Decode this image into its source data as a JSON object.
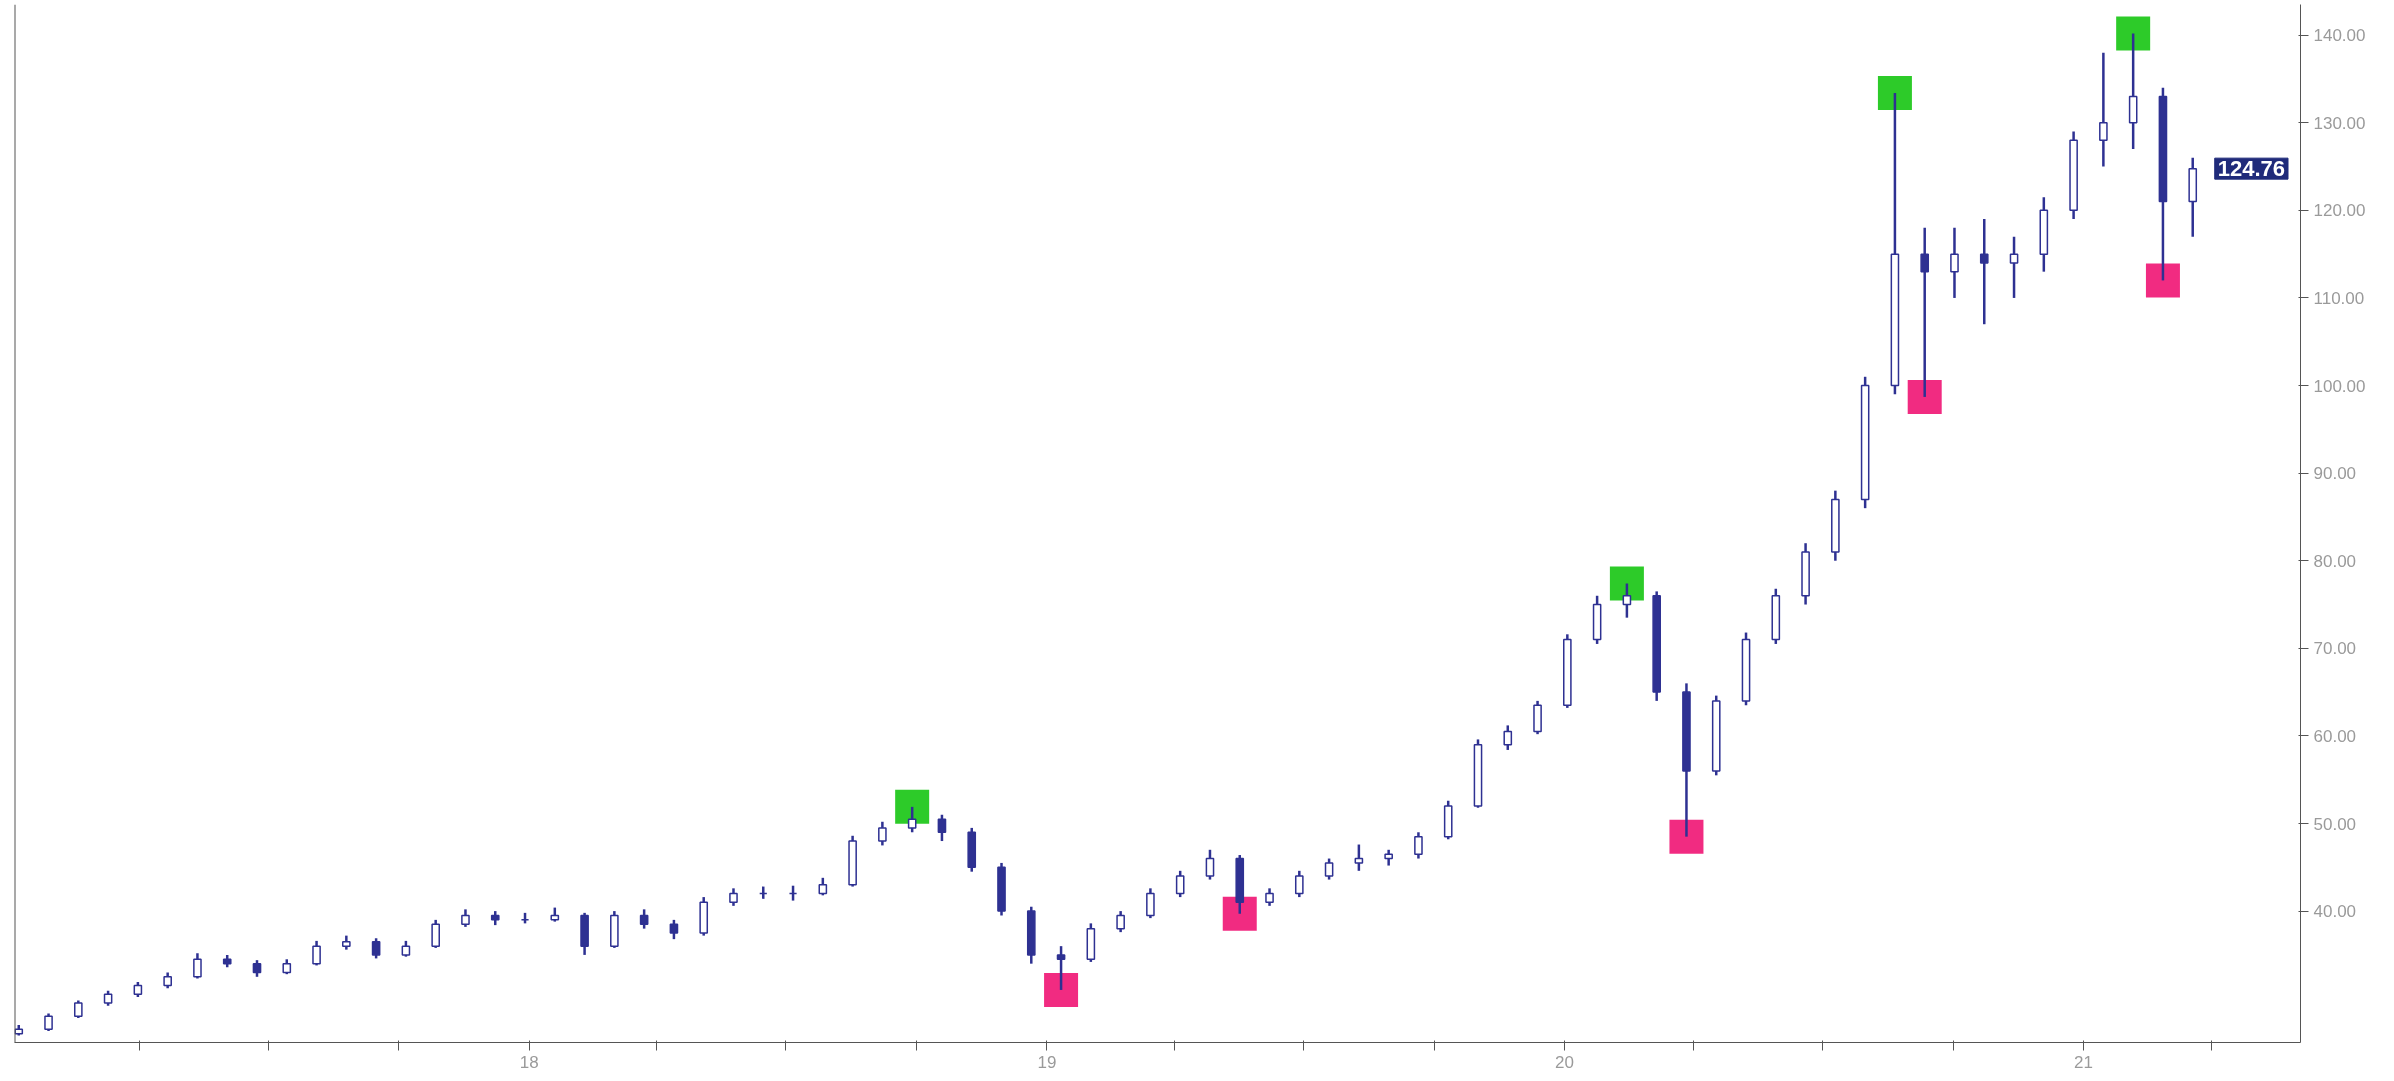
{
  "chart_data": {
    "type": "candlestick",
    "color": "#2e3192",
    "marker": "square",
    "grid": false,
    "xlim": [
      "2017-01-03",
      "2021-06-03"
    ],
    "ylim": [
      25,
      143.5
    ],
    "xticks": [
      {
        "value": "2017-04-01",
        "label": null
      },
      {
        "value": "2017-07-01",
        "label": null
      },
      {
        "value": "2017-10-01",
        "label": null
      },
      {
        "value": "2018-01-01",
        "label": "18"
      },
      {
        "value": "2018-04-01",
        "label": null
      },
      {
        "value": "2018-07-01",
        "label": null
      },
      {
        "value": "2018-10-01",
        "label": null
      },
      {
        "value": "2019-01-01",
        "label": "19"
      },
      {
        "value": "2019-04-01",
        "label": null
      },
      {
        "value": "2019-07-01",
        "label": null
      },
      {
        "value": "2019-10-01",
        "label": null
      },
      {
        "value": "2020-01-01",
        "label": "20"
      },
      {
        "value": "2020-04-01",
        "label": null
      },
      {
        "value": "2020-07-01",
        "label": null
      },
      {
        "value": "2020-10-01",
        "label": null
      },
      {
        "value": "2021-01-01",
        "label": "21"
      },
      {
        "value": "2021-04-01",
        "label": null
      }
    ],
    "yticks": [
      {
        "value": 40,
        "label": "40.00"
      },
      {
        "value": 50,
        "label": "50.00"
      },
      {
        "value": 60,
        "label": "60.00"
      },
      {
        "value": 70,
        "label": "70.00"
      },
      {
        "value": 80,
        "label": "80.00"
      },
      {
        "value": 90,
        "label": "90.00"
      },
      {
        "value": 100,
        "label": "100.00"
      },
      {
        "value": 110,
        "label": "110.00"
      },
      {
        "value": 120,
        "label": "120.00"
      },
      {
        "value": 130,
        "label": "130.00"
      },
      {
        "value": 140,
        "label": "140.00"
      }
    ],
    "annotations": [
      {
        "text": "124.76",
        "x": "2021-03-19",
        "y": 124.76
      }
    ],
    "x": [
      "2017-01-06",
      "2017-01-27",
      "2017-02-17",
      "2017-03-10",
      "2017-03-31",
      "2017-04-21",
      "2017-05-12",
      "2017-06-02",
      "2017-06-23",
      "2017-07-14",
      "2017-08-04",
      "2017-08-25",
      "2017-09-15",
      "2017-10-06",
      "2017-10-27",
      "2017-11-17",
      "2017-12-08",
      "2017-12-29",
      "2018-01-19",
      "2018-02-09",
      "2018-03-02",
      "2018-03-23",
      "2018-04-13",
      "2018-05-04",
      "2018-05-25",
      "2018-06-15",
      "2018-07-06",
      "2018-07-27",
      "2018-08-17",
      "2018-09-07",
      "2018-09-28",
      "2018-10-19",
      "2018-11-09",
      "2018-11-30",
      "2018-12-21",
      "2019-01-11",
      "2019-02-01",
      "2019-02-22",
      "2019-03-15",
      "2019-04-05",
      "2019-04-26",
      "2019-05-17",
      "2019-06-07",
      "2019-06-28",
      "2019-07-19",
      "2019-08-09",
      "2019-08-30",
      "2019-09-20",
      "2019-10-11",
      "2019-11-01",
      "2019-11-22",
      "2019-12-13",
      "2020-01-03",
      "2020-01-24",
      "2020-02-14",
      "2020-03-06",
      "2020-03-27",
      "2020-04-17",
      "2020-05-08",
      "2020-05-29",
      "2020-06-19",
      "2020-07-10",
      "2020-07-31",
      "2020-08-21",
      "2020-09-11",
      "2020-10-02",
      "2020-10-23",
      "2020-11-13",
      "2020-12-04",
      "2020-12-25",
      "2021-01-15",
      "2021-02-05",
      "2021-02-26",
      "2021-03-19"
    ],
    "ohlc": [
      [
        26,
        27,
        25.8,
        26.5
      ],
      [
        26.5,
        28.3,
        26.3,
        28
      ],
      [
        28,
        29.8,
        27.8,
        29.5
      ],
      [
        29.5,
        30.9,
        29.2,
        30.5
      ],
      [
        30.5,
        31.9,
        30.2,
        31.5
      ],
      [
        31.5,
        33,
        31.2,
        32.5
      ],
      [
        32.5,
        35.2,
        32.3,
        34.5
      ],
      [
        34.5,
        35,
        33.6,
        34
      ],
      [
        34,
        34.4,
        32.5,
        33
      ],
      [
        33,
        34.5,
        32.8,
        34
      ],
      [
        34,
        36.6,
        33.8,
        36
      ],
      [
        36,
        37.2,
        35.6,
        36.5
      ],
      [
        36.5,
        36.9,
        34.6,
        35
      ],
      [
        35,
        36.6,
        34.8,
        36
      ],
      [
        36,
        39,
        35.8,
        38.5
      ],
      [
        38.5,
        40.2,
        38.2,
        39.5
      ],
      [
        39.5,
        40,
        38.4,
        39
      ],
      [
        39,
        39.8,
        38.6,
        39
      ],
      [
        39,
        40.4,
        38.8,
        39.5
      ],
      [
        39.5,
        39.8,
        35,
        36
      ],
      [
        36,
        40,
        35.8,
        39.5
      ],
      [
        39.5,
        40.2,
        38,
        38.5
      ],
      [
        38.5,
        39,
        36.8,
        37.5
      ],
      [
        37.5,
        41.6,
        37.2,
        41
      ],
      [
        41,
        42.6,
        40.6,
        42
      ],
      [
        42,
        42.8,
        41.4,
        42
      ],
      [
        42,
        42.9,
        41.2,
        42
      ],
      [
        42,
        43.8,
        41.8,
        43
      ],
      [
        43,
        48.6,
        42.8,
        48
      ],
      [
        48,
        50.2,
        47.5,
        49.5
      ],
      [
        49.5,
        51.9,
        49,
        50.5
      ],
      [
        50.5,
        51,
        48,
        49
      ],
      [
        49,
        49.5,
        44.5,
        45
      ],
      [
        45,
        45.5,
        39.5,
        40
      ],
      [
        40,
        40.5,
        34,
        35
      ],
      [
        35,
        36,
        31,
        34.5
      ],
      [
        34.5,
        38.6,
        34.2,
        38
      ],
      [
        38,
        40,
        37.6,
        39.5
      ],
      [
        39.5,
        42.6,
        39.2,
        42
      ],
      [
        42,
        44.6,
        41.6,
        44
      ],
      [
        44,
        47,
        43.6,
        46
      ],
      [
        46,
        46.4,
        39.7,
        41
      ],
      [
        41,
        42.6,
        40.6,
        42
      ],
      [
        42,
        44.6,
        41.6,
        44
      ],
      [
        44,
        46,
        43.6,
        45.5
      ],
      [
        45.5,
        47.6,
        44.6,
        46
      ],
      [
        46,
        47,
        45.2,
        46.5
      ],
      [
        46.5,
        49,
        46,
        48.5
      ],
      [
        48.5,
        52.6,
        48.2,
        52
      ],
      [
        52,
        59.6,
        51.8,
        59
      ],
      [
        59,
        61.2,
        58.4,
        60.5
      ],
      [
        60.5,
        64,
        60.2,
        63.5
      ],
      [
        63.5,
        71.6,
        63.2,
        71
      ],
      [
        71,
        76,
        70.5,
        75
      ],
      [
        75,
        77.4,
        73.5,
        76
      ],
      [
        76,
        76.5,
        64,
        65
      ],
      [
        65,
        66,
        48.5,
        56
      ],
      [
        56,
        64.6,
        55.5,
        64
      ],
      [
        64,
        71.8,
        63.5,
        71
      ],
      [
        71,
        76.8,
        70.5,
        76
      ],
      [
        76,
        82,
        75,
        81
      ],
      [
        81,
        88,
        80,
        87
      ],
      [
        87,
        101,
        86,
        100
      ],
      [
        100,
        133.4,
        99,
        115
      ],
      [
        115,
        118,
        98.7,
        113
      ],
      [
        113,
        118,
        110,
        115
      ],
      [
        115,
        119,
        107,
        114
      ],
      [
        114,
        117,
        110,
        115
      ],
      [
        115,
        121.5,
        113,
        120
      ],
      [
        120,
        129,
        119,
        128
      ],
      [
        128,
        138,
        125,
        130
      ],
      [
        130,
        140.2,
        127,
        133
      ],
      [
        133,
        134,
        112,
        121
      ],
      [
        121,
        126,
        117,
        124.76
      ]
    ],
    "series": [
      {
        "type": "scatter",
        "color": "#22c81e",
        "x": [
          "2018-09-28",
          "2020-02-14",
          "2020-08-21",
          "2021-02-05"
        ],
        "values": [
          51.9,
          77.4,
          133.4,
          140.2
        ]
      },
      {
        "type": "scatter",
        "color": "#f0207a",
        "x": [
          "2019-01-11",
          "2019-05-17",
          "2020-03-27",
          "2020-09-11",
          "2021-02-26"
        ],
        "values": [
          31,
          39.7,
          48.5,
          98.7,
          112
        ]
      }
    ]
  }
}
